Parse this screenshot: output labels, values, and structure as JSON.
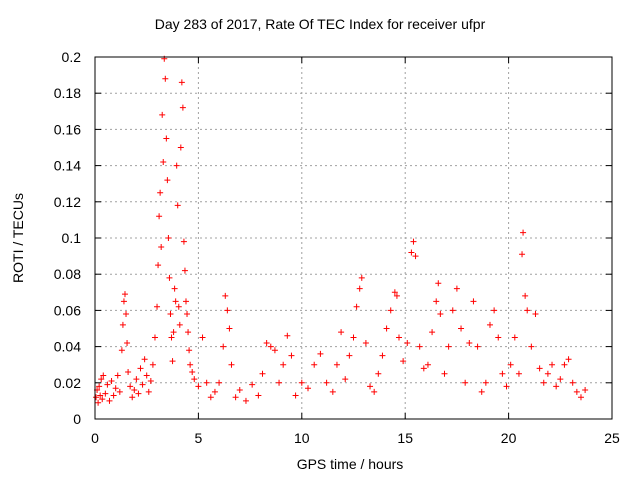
{
  "chart_data": {
    "type": "scatter",
    "title": "Day 283 of 2017, Rate Of TEC Index for receiver ufpr",
    "xlabel": "GPS time / hours",
    "ylabel": "ROTI / TECUs",
    "xlim": [
      0,
      25
    ],
    "ylim": [
      0,
      0.2
    ],
    "x_ticks": [
      "0",
      "5",
      "10",
      "15",
      "20",
      "25"
    ],
    "y_ticks": [
      "0",
      "0.02",
      "0.04",
      "0.06",
      "0.08",
      "0.1",
      "0.12",
      "0.14",
      "0.16",
      "0.18",
      "0.2"
    ],
    "grid": true,
    "marker": "+",
    "color": "#ff0000",
    "series": [
      {
        "points": [
          [
            0.05,
            0.012
          ],
          [
            0.1,
            0.016
          ],
          [
            0.15,
            0.009
          ],
          [
            0.2,
            0.018
          ],
          [
            0.25,
            0.013
          ],
          [
            0.3,
            0.022
          ],
          [
            0.35,
            0.011
          ],
          [
            0.4,
            0.024
          ],
          [
            0.5,
            0.014
          ],
          [
            0.6,
            0.019
          ],
          [
            0.7,
            0.01
          ],
          [
            0.8,
            0.021
          ],
          [
            0.9,
            0.013
          ],
          [
            1.0,
            0.017
          ],
          [
            1.1,
            0.024
          ],
          [
            1.2,
            0.015
          ],
          [
            1.3,
            0.038
          ],
          [
            1.35,
            0.052
          ],
          [
            1.4,
            0.065
          ],
          [
            1.45,
            0.069
          ],
          [
            1.5,
            0.058
          ],
          [
            1.55,
            0.042
          ],
          [
            1.6,
            0.026
          ],
          [
            1.7,
            0.018
          ],
          [
            1.8,
            0.012
          ],
          [
            1.9,
            0.016
          ],
          [
            2.0,
            0.022
          ],
          [
            2.1,
            0.014
          ],
          [
            2.2,
            0.028
          ],
          [
            2.3,
            0.019
          ],
          [
            2.4,
            0.033
          ],
          [
            2.5,
            0.024
          ],
          [
            2.6,
            0.015
          ],
          [
            2.7,
            0.021
          ],
          [
            2.8,
            0.03
          ],
          [
            2.9,
            0.045
          ],
          [
            3.0,
            0.062
          ],
          [
            3.05,
            0.085
          ],
          [
            3.1,
            0.112
          ],
          [
            3.15,
            0.125
          ],
          [
            3.2,
            0.095
          ],
          [
            3.25,
            0.168
          ],
          [
            3.3,
            0.142
          ],
          [
            3.35,
            0.199
          ],
          [
            3.4,
            0.188
          ],
          [
            3.45,
            0.155
          ],
          [
            3.5,
            0.132
          ],
          [
            3.55,
            0.1
          ],
          [
            3.6,
            0.078
          ],
          [
            3.65,
            0.058
          ],
          [
            3.7,
            0.045
          ],
          [
            3.75,
            0.032
          ],
          [
            3.8,
            0.048
          ],
          [
            3.85,
            0.072
          ],
          [
            3.9,
            0.065
          ],
          [
            3.95,
            0.14
          ],
          [
            4.0,
            0.118
          ],
          [
            4.05,
            0.062
          ],
          [
            4.1,
            0.052
          ],
          [
            4.15,
            0.15
          ],
          [
            4.2,
            0.186
          ],
          [
            4.25,
            0.172
          ],
          [
            4.3,
            0.098
          ],
          [
            4.35,
            0.082
          ],
          [
            4.4,
            0.065
          ],
          [
            4.45,
            0.058
          ],
          [
            4.5,
            0.048
          ],
          [
            4.55,
            0.038
          ],
          [
            4.6,
            0.03
          ],
          [
            4.7,
            0.026
          ],
          [
            4.8,
            0.022
          ],
          [
            5.0,
            0.018
          ],
          [
            5.2,
            0.045
          ],
          [
            5.4,
            0.02
          ],
          [
            5.6,
            0.012
          ],
          [
            5.8,
            0.015
          ],
          [
            6.0,
            0.02
          ],
          [
            6.2,
            0.04
          ],
          [
            6.3,
            0.068
          ],
          [
            6.4,
            0.06
          ],
          [
            6.5,
            0.05
          ],
          [
            6.6,
            0.03
          ],
          [
            6.8,
            0.012
          ],
          [
            7.0,
            0.016
          ],
          [
            7.3,
            0.01
          ],
          [
            7.6,
            0.019
          ],
          [
            7.9,
            0.013
          ],
          [
            8.1,
            0.025
          ],
          [
            8.3,
            0.042
          ],
          [
            8.5,
            0.04
          ],
          [
            8.7,
            0.038
          ],
          [
            8.9,
            0.02
          ],
          [
            9.1,
            0.03
          ],
          [
            9.3,
            0.046
          ],
          [
            9.5,
            0.035
          ],
          [
            9.7,
            0.013
          ],
          [
            10.0,
            0.02
          ],
          [
            10.3,
            0.017
          ],
          [
            10.6,
            0.03
          ],
          [
            10.9,
            0.036
          ],
          [
            11.2,
            0.02
          ],
          [
            11.5,
            0.015
          ],
          [
            11.7,
            0.03
          ],
          [
            11.9,
            0.048
          ],
          [
            12.1,
            0.022
          ],
          [
            12.3,
            0.035
          ],
          [
            12.5,
            0.045
          ],
          [
            12.65,
            0.062
          ],
          [
            12.8,
            0.072
          ],
          [
            12.9,
            0.078
          ],
          [
            13.1,
            0.042
          ],
          [
            13.3,
            0.018
          ],
          [
            13.5,
            0.015
          ],
          [
            13.7,
            0.025
          ],
          [
            13.9,
            0.035
          ],
          [
            14.1,
            0.05
          ],
          [
            14.3,
            0.06
          ],
          [
            14.5,
            0.07
          ],
          [
            14.6,
            0.068
          ],
          [
            14.7,
            0.045
          ],
          [
            14.9,
            0.032
          ],
          [
            15.1,
            0.042
          ],
          [
            15.3,
            0.092
          ],
          [
            15.4,
            0.098
          ],
          [
            15.5,
            0.09
          ],
          [
            15.7,
            0.04
          ],
          [
            15.9,
            0.028
          ],
          [
            16.1,
            0.03
          ],
          [
            16.3,
            0.048
          ],
          [
            16.5,
            0.065
          ],
          [
            16.6,
            0.075
          ],
          [
            16.7,
            0.058
          ],
          [
            16.9,
            0.025
          ],
          [
            17.1,
            0.04
          ],
          [
            17.3,
            0.06
          ],
          [
            17.5,
            0.072
          ],
          [
            17.7,
            0.05
          ],
          [
            17.9,
            0.02
          ],
          [
            18.1,
            0.042
          ],
          [
            18.3,
            0.065
          ],
          [
            18.5,
            0.04
          ],
          [
            18.7,
            0.015
          ],
          [
            18.9,
            0.02
          ],
          [
            19.1,
            0.052
          ],
          [
            19.3,
            0.06
          ],
          [
            19.5,
            0.045
          ],
          [
            19.7,
            0.025
          ],
          [
            19.9,
            0.018
          ],
          [
            20.1,
            0.03
          ],
          [
            20.3,
            0.045
          ],
          [
            20.5,
            0.025
          ],
          [
            20.65,
            0.091
          ],
          [
            20.7,
            0.103
          ],
          [
            20.8,
            0.068
          ],
          [
            20.9,
            0.06
          ],
          [
            21.1,
            0.04
          ],
          [
            21.3,
            0.058
          ],
          [
            21.5,
            0.028
          ],
          [
            21.7,
            0.02
          ],
          [
            21.9,
            0.025
          ],
          [
            22.1,
            0.03
          ],
          [
            22.3,
            0.018
          ],
          [
            22.5,
            0.022
          ],
          [
            22.7,
            0.03
          ],
          [
            22.9,
            0.033
          ],
          [
            23.1,
            0.02
          ],
          [
            23.3,
            0.015
          ],
          [
            23.5,
            0.012
          ],
          [
            23.7,
            0.016
          ]
        ]
      }
    ]
  }
}
